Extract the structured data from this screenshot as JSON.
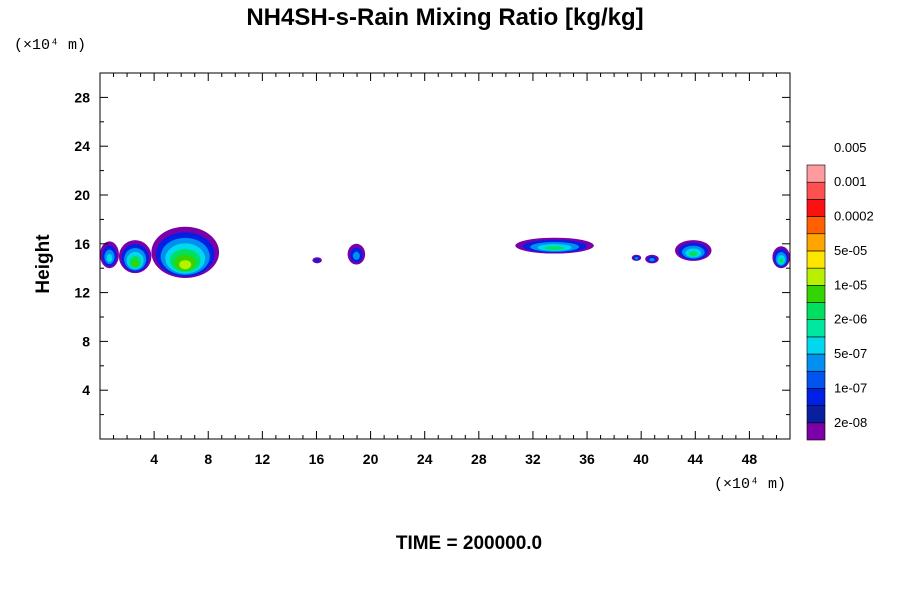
{
  "chart_data": {
    "type": "heatmap",
    "title": "NH4SH-s-Rain Mixing Ratio [kg/kg]",
    "xlabel": "",
    "ylabel": "Height",
    "x_unit_label": "(×10⁴ m)",
    "y_unit_label": "(×10⁴ m)",
    "footer": "TIME = 200000.0",
    "xlim": [
      0,
      51
    ],
    "ylim": [
      0,
      30
    ],
    "x_ticks": [
      4,
      8,
      12,
      16,
      20,
      24,
      28,
      32,
      36,
      40,
      44,
      48
    ],
    "y_ticks": [
      4,
      8,
      12,
      16,
      20,
      24,
      28
    ],
    "colorbar": {
      "colors": [
        "#7b00a8",
        "#0a1fa0",
        "#0020e6",
        "#0055ee",
        "#0090f0",
        "#00d8f0",
        "#00e8a0",
        "#00e060",
        "#33d400",
        "#b8f000",
        "#ffe600",
        "#ffa500",
        "#ff6000",
        "#ff1010",
        "#ff5050",
        "#ff9aa0"
      ],
      "labels": [
        "2e-08",
        "1e-07",
        "5e-07",
        "2e-06",
        "1e-05",
        "5e-05",
        "0.0002",
        "0.001",
        "0.005"
      ]
    },
    "regions": [
      {
        "x": [
          0.0,
          1.4
        ],
        "y": [
          14.0,
          16.2
        ],
        "peak": "2e-06"
      },
      {
        "x": [
          1.4,
          3.8
        ],
        "y": [
          13.6,
          16.3
        ],
        "peak": "5e-05"
      },
      {
        "x": [
          3.8,
          8.8
        ],
        "y": [
          13.2,
          17.4
        ],
        "peak": "0.0002"
      },
      {
        "x": [
          15.7,
          16.4
        ],
        "y": [
          14.4,
          14.9
        ],
        "peak": "1e-07"
      },
      {
        "x": [
          18.3,
          19.6
        ],
        "y": [
          14.3,
          16.0
        ],
        "peak": "5e-07"
      },
      {
        "x": [
          30.7,
          36.5
        ],
        "y": [
          15.2,
          16.5
        ],
        "peak": "1e-05"
      },
      {
        "x": [
          39.3,
          40.0
        ],
        "y": [
          14.6,
          15.1
        ],
        "peak": "5e-07"
      },
      {
        "x": [
          40.3,
          41.3
        ],
        "y": [
          14.4,
          15.1
        ],
        "peak": "5e-07"
      },
      {
        "x": [
          42.5,
          45.2
        ],
        "y": [
          14.6,
          16.3
        ],
        "peak": "1e-05"
      },
      {
        "x": [
          49.7,
          51.0
        ],
        "y": [
          14.0,
          15.8
        ],
        "peak": "1e-05"
      }
    ]
  }
}
